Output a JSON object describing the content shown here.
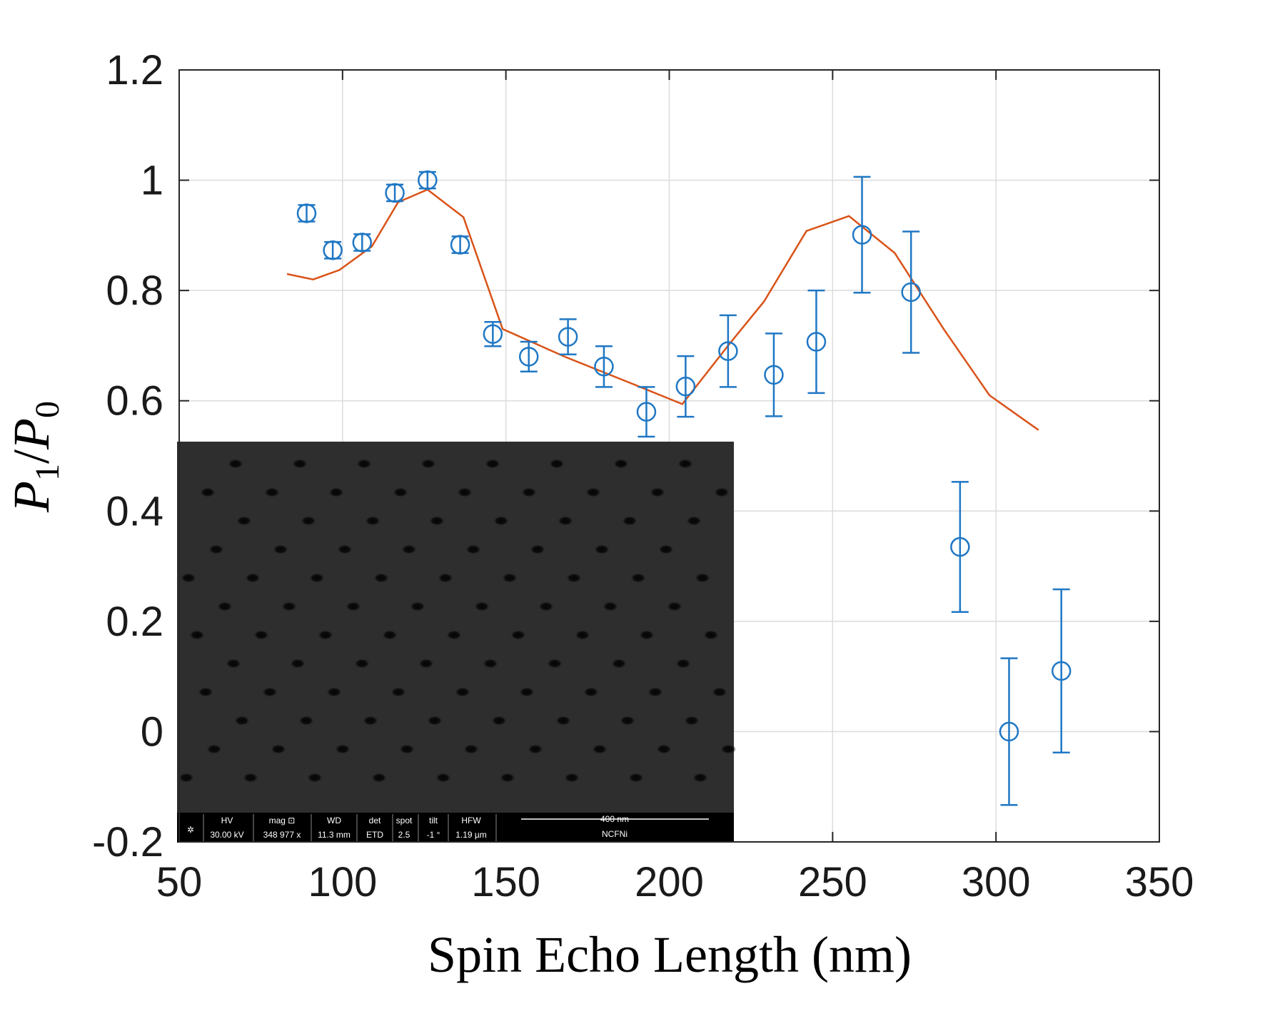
{
  "chart_data": {
    "type": "scatter",
    "xlabel": "Spin Echo Length (nm)",
    "ylabel": {
      "main": "P",
      "sub1": "1",
      "slash": "/",
      "main2": "P",
      "sub2": "0"
    },
    "xlim": [
      50,
      350
    ],
    "ylim": [
      -0.2,
      1.2
    ],
    "x_ticks": [
      "50",
      "100",
      "150",
      "200",
      "250",
      "300",
      "350"
    ],
    "y_ticks": [
      "-0.2",
      "0",
      "0.2",
      "0.4",
      "0.6",
      "0.8",
      "1",
      "1.2"
    ],
    "grid": true,
    "colors": {
      "data": "#1f77c4",
      "fit": "#d95319"
    },
    "series": [
      {
        "kind": "errorbar",
        "x": [
          89,
          97,
          106,
          116,
          126,
          136,
          146,
          157,
          169,
          180,
          193,
          205,
          218,
          232,
          245,
          259,
          274,
          289,
          304,
          320
        ],
        "y": [
          0.94,
          0.873,
          0.887,
          0.977,
          1.0,
          0.883,
          0.721,
          0.68,
          0.716,
          0.662,
          0.58,
          0.626,
          0.69,
          0.647,
          0.707,
          0.901,
          0.797,
          0.335,
          0.0,
          0.11
        ],
        "err": [
          0.015,
          0.015,
          0.015,
          0.015,
          0.015,
          0.015,
          0.022,
          0.027,
          0.032,
          0.037,
          0.045,
          0.055,
          0.065,
          0.075,
          0.093,
          0.105,
          0.11,
          0.118,
          0.133,
          0.148
        ]
      },
      {
        "kind": "line",
        "x": [
          83,
          91,
          99,
          109,
          117,
          126,
          137,
          149,
          168,
          189,
          204,
          218,
          229,
          242,
          255,
          269,
          284,
          298,
          313
        ],
        "y": [
          0.83,
          0.82,
          0.837,
          0.88,
          0.96,
          0.983,
          0.933,
          0.73,
          0.68,
          0.63,
          0.594,
          0.7,
          0.78,
          0.908,
          0.935,
          0.868,
          0.73,
          0.61,
          0.547
        ]
      }
    ]
  },
  "inset": {
    "info_bar": {
      "headers": [
        "HV",
        "mag ⊡",
        "WD",
        "det",
        "spot",
        "tilt",
        "HFW"
      ],
      "values": [
        "30.00 kV",
        "348 977 x",
        "11.3 mm",
        "ETD",
        "2.5",
        "-1 °",
        "1.19 µm"
      ],
      "scale_label": "400 nm",
      "sample_name": "NCFNi"
    }
  }
}
